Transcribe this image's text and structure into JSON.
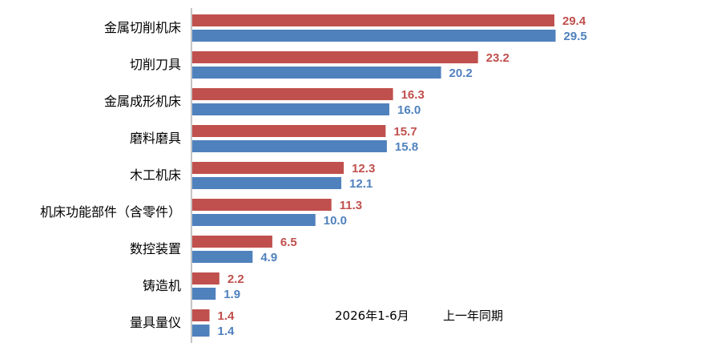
{
  "chart_data": {
    "type": "bar",
    "orientation": "horizontal",
    "categories": [
      "金属切削机床",
      "切削刀具",
      "金属成形机床",
      "磨料磨具",
      "木工机床",
      "机床功能部件（含零件）",
      "数控装置",
      "铸造机",
      "量具量仪"
    ],
    "series": [
      {
        "name": "2026年1-6月",
        "color": "#c0504d",
        "values": [
          29.4,
          23.2,
          16.3,
          15.7,
          12.3,
          11.3,
          6.5,
          2.2,
          1.4
        ]
      },
      {
        "name": "上一年同期",
        "color": "#4f81bd",
        "values": [
          29.5,
          20.2,
          16.0,
          15.8,
          12.1,
          10.0,
          4.9,
          1.9,
          1.4
        ]
      }
    ],
    "xlim": [
      0,
      35
    ],
    "grid": false,
    "legend_position": "bottom-center"
  }
}
